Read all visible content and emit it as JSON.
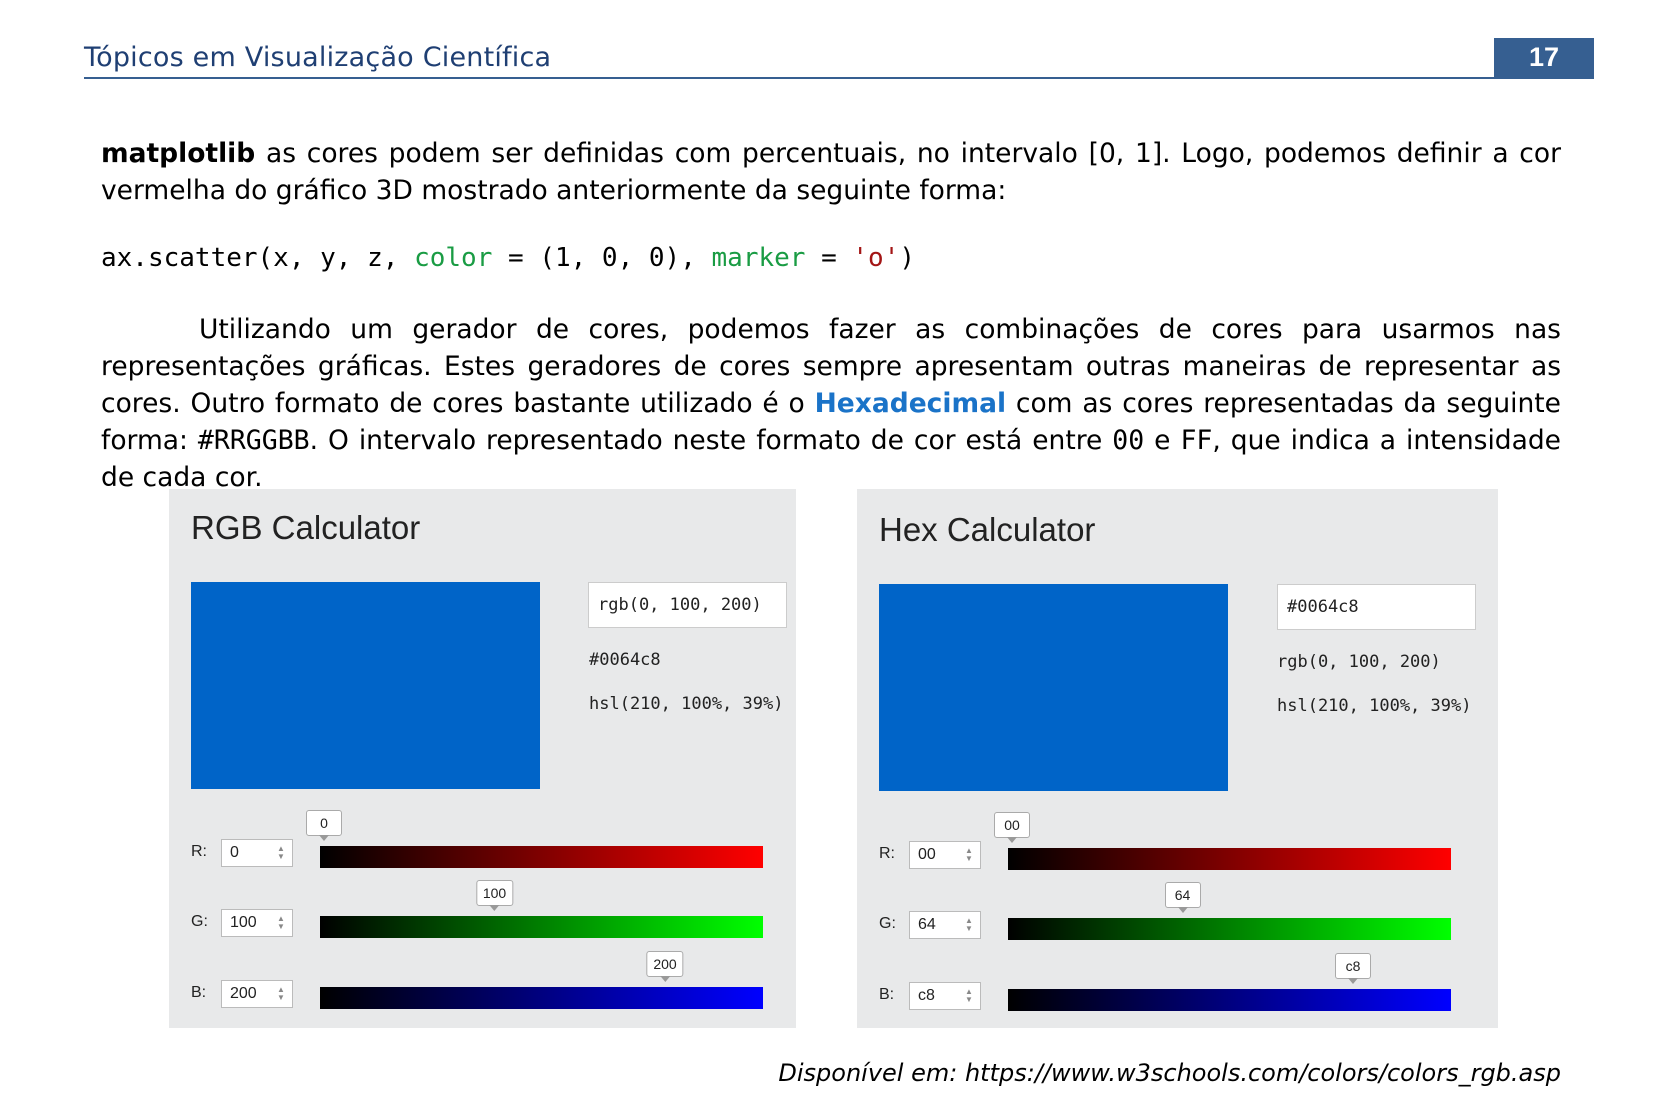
{
  "header": {
    "title": "Tópicos em Visualização Científica",
    "page_number": "17"
  },
  "paragraph1": {
    "bold_lead": "matplotlib",
    "text": " as cores podem ser definidas com percentuais, no intervalo [0, 1]. Logo, podemos definir a cor vermelha do gráfico 3D mostrado anteriormente da seguinte forma:"
  },
  "code": {
    "part1": "ax.scatter(x, y, z, ",
    "kw_color": "color",
    "eq1": " = (1, 0, 0), ",
    "kw_marker": "marker",
    "eq2": " = ",
    "str_o": "'o'",
    "close": ")"
  },
  "paragraph2": {
    "t1": "Utilizando um gerador de cores, podemos fazer as combinações de cores para usarmos nas representações gráficas. Estes geradores de cores sempre apresentam outras maneiras de representar as cores. Outro formato de cores bastante utilizado é o ",
    "hex_word": "Hexadecimal",
    "t2": " com as cores representadas da seguinte forma: ",
    "format": "#RRGGBB",
    "t3": ". O intervalo representado neste formato de cor está entre ",
    "min": "00",
    "t4": " e ",
    "max": "FF",
    "t5": ", que indica a intensidade de cada cor."
  },
  "rgb_calc": {
    "title": "RGB Calculator",
    "swatch_color": "#0064c8",
    "input_value": "rgb(0, 100, 200)",
    "hex_text": "#0064c8",
    "hsl_text": "hsl(210, 100%, 39%)",
    "rows": [
      {
        "label": "R:",
        "value": "0",
        "tip": "0",
        "level": 0.0
      },
      {
        "label": "G:",
        "value": "100",
        "tip": "100",
        "level": 0.392
      },
      {
        "label": "B:",
        "value": "200",
        "tip": "200",
        "level": 0.784
      }
    ]
  },
  "hex_calc": {
    "title": "Hex Calculator",
    "swatch_color": "#0064c8",
    "input_value": "#0064c8",
    "rgb_text": "rgb(0, 100, 200)",
    "hsl_text": "hsl(210, 100%, 39%)",
    "rows": [
      {
        "label": "R:",
        "value": "00",
        "tip": "00",
        "level": 0.0
      },
      {
        "label": "G:",
        "value": "64",
        "tip": "64",
        "level": 0.392
      },
      {
        "label": "B:",
        "value": "c8",
        "tip": "c8",
        "level": 0.784
      }
    ]
  },
  "caption": "Disponível em: https://www.w3schools.com/colors/colors_rgb.asp"
}
